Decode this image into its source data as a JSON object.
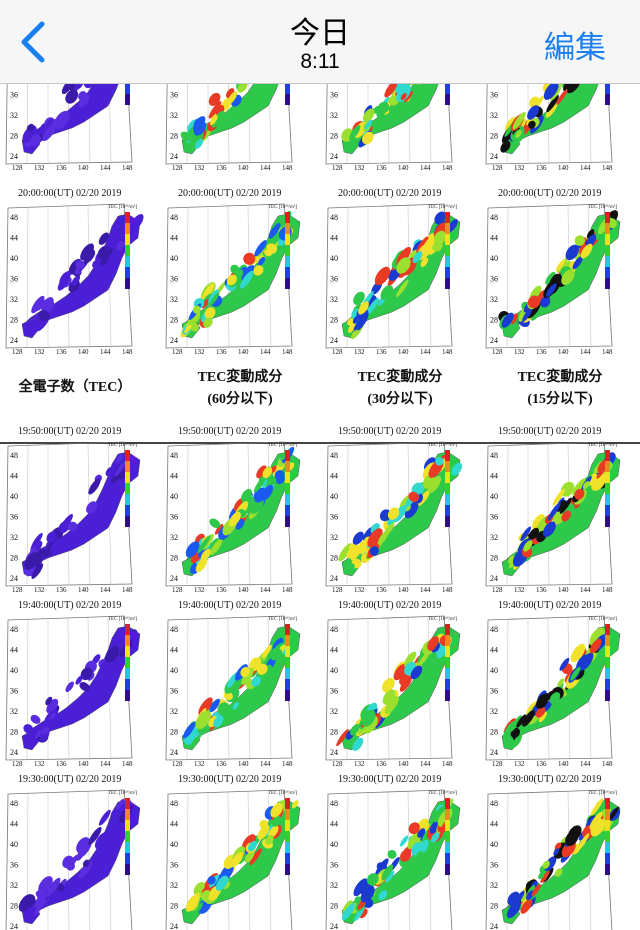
{
  "nav": {
    "back_icon": "chevron-left-icon",
    "title": "今日",
    "subtitle": "8:11",
    "edit_label": "編集"
  },
  "colors": {
    "accent": "#1a7ff0",
    "bar_bg": "#f6f6f7"
  },
  "headers": [
    {
      "line1": "全電子数（TEC）",
      "line2": ""
    },
    {
      "line1": "TEC変動成分",
      "line2": "(60分以下)"
    },
    {
      "line1": "TEC変動成分",
      "line2": "(30分以下)"
    },
    {
      "line1": "TEC変動成分",
      "line2": "(15分以下)"
    }
  ],
  "rows": [
    {
      "timestamp": ""
    },
    {
      "timestamp": "20:00:00(UT)  02/20 2019"
    },
    {
      "timestamp": "19:50:00(UT)  02/20 2019"
    },
    {
      "timestamp": "19:40:00(UT)  02/20 2019"
    },
    {
      "timestamp": "19:30:00(UT)  02/20 2019"
    }
  ],
  "map_labels": {
    "lat": [
      "48",
      "44",
      "40",
      "36",
      "32",
      "28",
      "24"
    ],
    "lon": [
      "128",
      "132",
      "136",
      "140",
      "144",
      "148"
    ],
    "colorbar_title": "TEC [10¹⁶/m²]"
  }
}
